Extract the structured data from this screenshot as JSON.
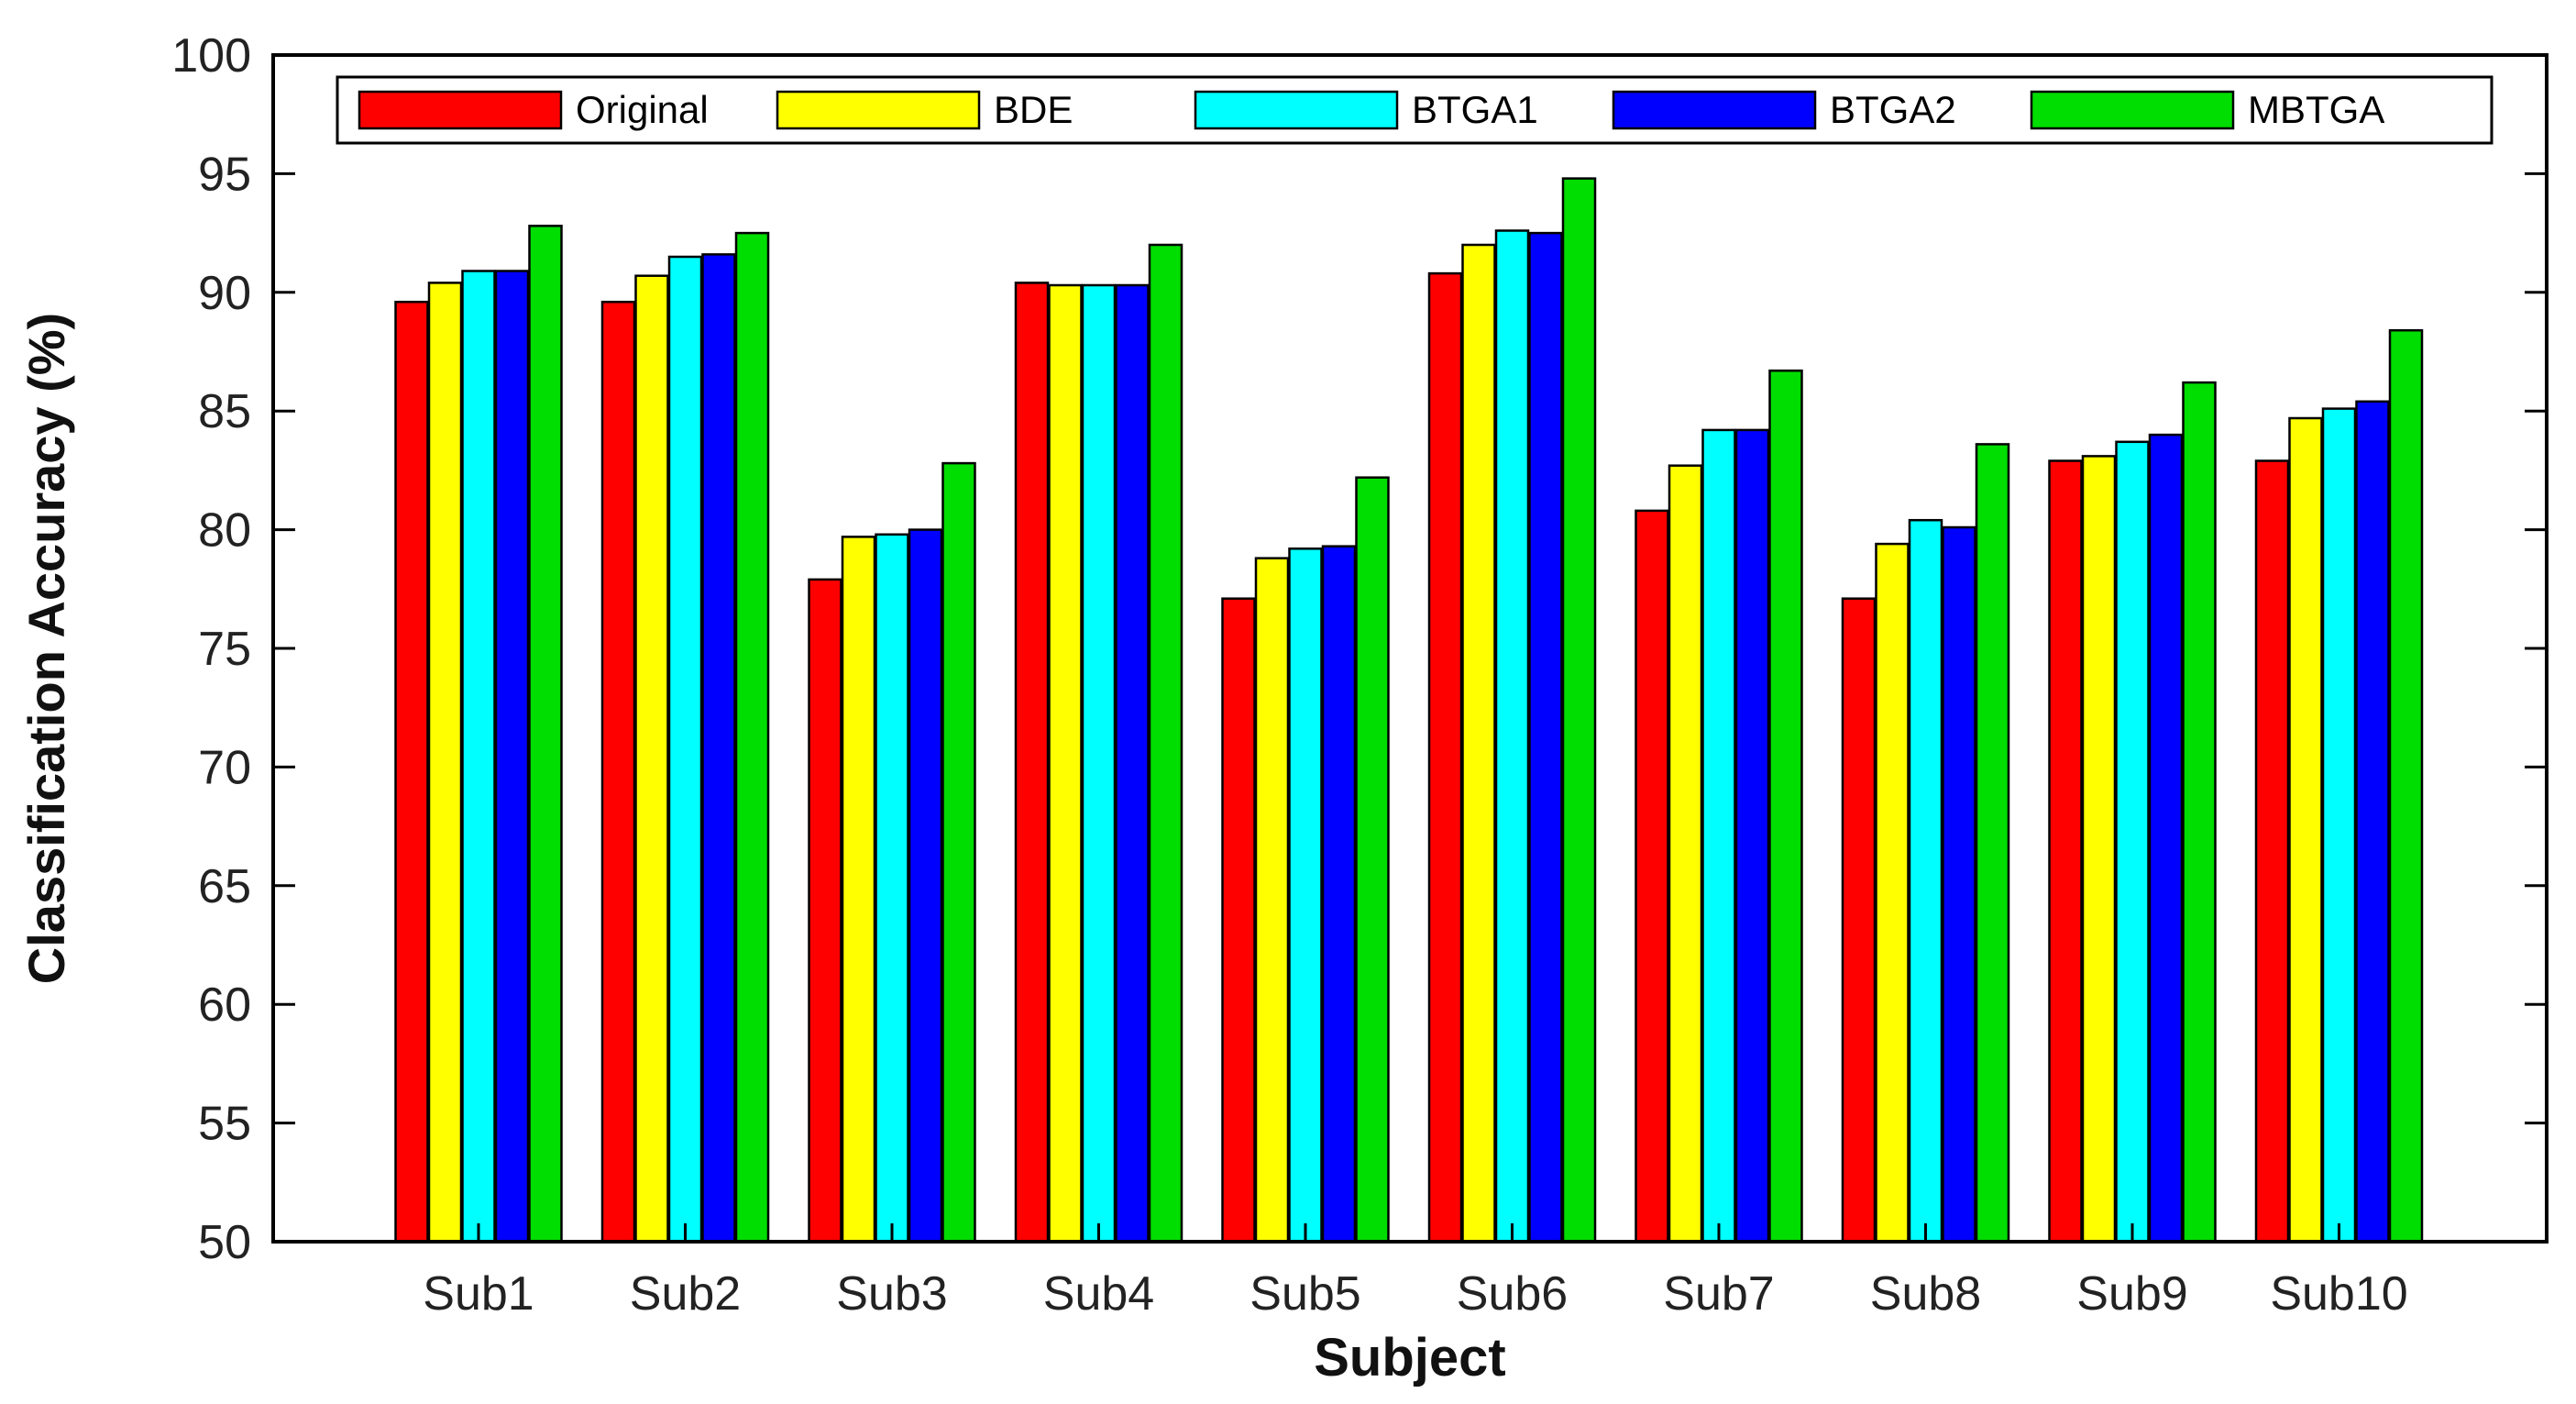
{
  "chart_data": {
    "type": "bar",
    "title": "",
    "xlabel": "Subject",
    "ylabel": "Classification Accuracy (%)",
    "ylim": [
      50,
      100
    ],
    "yticks": [
      50,
      55,
      60,
      65,
      70,
      75,
      80,
      85,
      90,
      95,
      100
    ],
    "grid": false,
    "legend_position": "top",
    "categories": [
      "Sub1",
      "Sub2",
      "Sub3",
      "Sub4",
      "Sub5",
      "Sub6",
      "Sub7",
      "Sub8",
      "Sub9",
      "Sub10"
    ],
    "series": [
      {
        "name": "Original",
        "color": "#ff0000",
        "values": [
          89.6,
          89.6,
          77.9,
          90.4,
          77.1,
          90.8,
          80.8,
          77.1,
          82.9,
          82.9
        ]
      },
      {
        "name": "BDE",
        "color": "#ffff00",
        "values": [
          90.4,
          90.7,
          79.7,
          90.3,
          78.8,
          92.0,
          82.7,
          79.4,
          83.1,
          84.7
        ]
      },
      {
        "name": "BTGA1",
        "color": "#00ffff",
        "values": [
          90.9,
          91.5,
          79.8,
          90.3,
          79.2,
          92.6,
          84.2,
          80.4,
          83.7,
          85.1
        ]
      },
      {
        "name": "BTGA2",
        "color": "#0000ff",
        "values": [
          90.9,
          91.6,
          80.0,
          90.3,
          79.3,
          92.5,
          84.2,
          80.1,
          84.0,
          85.4
        ]
      },
      {
        "name": "MBTGA",
        "color": "#00dd00",
        "values": [
          92.8,
          92.5,
          82.8,
          92.0,
          82.2,
          94.8,
          86.7,
          83.6,
          86.2,
          88.4
        ]
      }
    ]
  }
}
